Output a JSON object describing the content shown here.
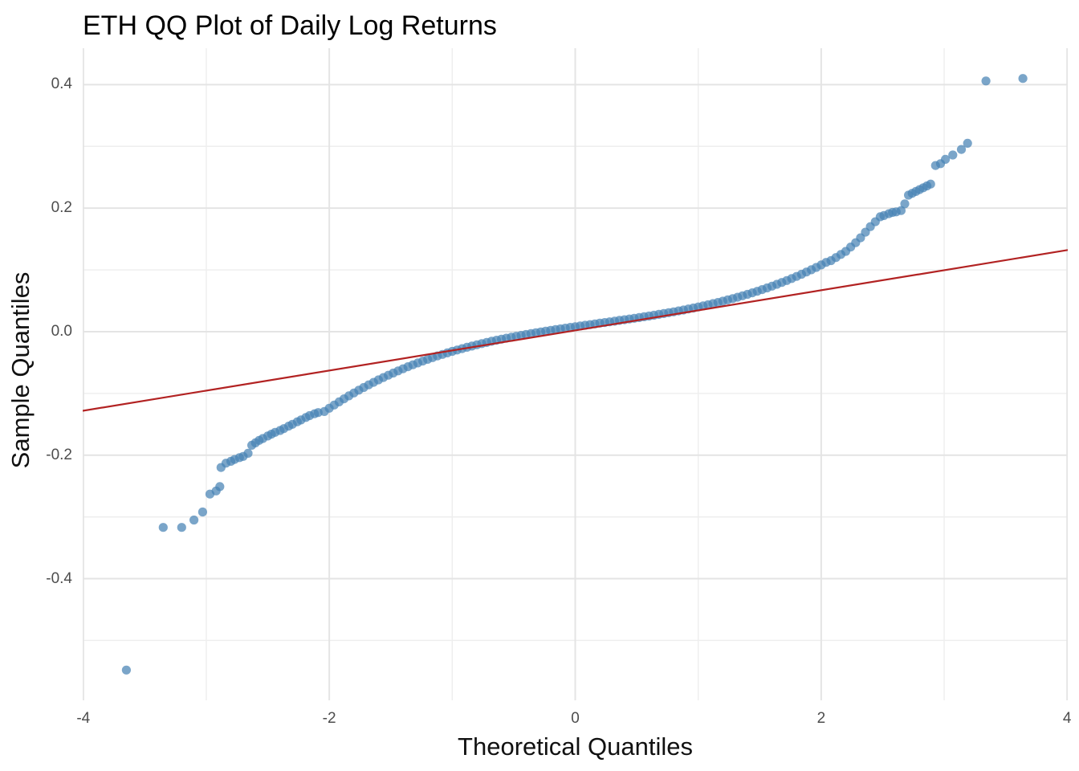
{
  "chart_data": {
    "type": "scatter",
    "title": "ETH QQ Plot of Daily Log Returns",
    "xlabel": "Theoretical Quantiles",
    "ylabel": "Sample Quantiles",
    "xlim": [
      -4.005,
      4.005
    ],
    "ylim": [
      -0.597,
      0.459
    ],
    "x_ticks": [
      -4,
      -2,
      0,
      2,
      4
    ],
    "x_tick_labels": [
      "-4",
      "-2",
      "0",
      "2",
      "4"
    ],
    "y_ticks": [
      0.4,
      0.2,
      0.0,
      -0.2,
      -0.4
    ],
    "y_tick_labels": [
      "0.4",
      "0.2",
      "0.0",
      "-0.2",
      "-0.4"
    ],
    "x_minor_gridlines": [
      -3,
      -1,
      1,
      3
    ],
    "y_minor_gridlines": [
      0.3,
      0.1,
      -0.1,
      -0.3,
      -0.5
    ],
    "grid": true,
    "legend": false,
    "colors": {
      "background": "#ffffff",
      "grid_major": "#e4e4e4",
      "grid_minor": "#eeeeee",
      "point_fill": "#4682B4",
      "reference_line": "#B22222",
      "tick_label": "#4d4d4d",
      "title": "#000000"
    },
    "point_opacity": 0.72,
    "point_radius": 5.6,
    "reference_line": {
      "intercept": 0.002,
      "slope": 0.0325
    },
    "points": [
      [
        -3.65,
        -0.548
      ],
      [
        -3.35,
        -0.317
      ],
      [
        -3.2,
        -0.317
      ],
      [
        -3.1,
        -0.305
      ],
      [
        -3.03,
        -0.292
      ],
      [
        -2.97,
        -0.263
      ],
      [
        -2.92,
        -0.258
      ],
      [
        -2.89,
        -0.251
      ],
      [
        -2.88,
        -0.22
      ],
      [
        -2.84,
        -0.213
      ],
      [
        -2.8,
        -0.21
      ],
      [
        -2.77,
        -0.207
      ],
      [
        -2.73,
        -0.204
      ],
      [
        -2.7,
        -0.202
      ],
      [
        -2.66,
        -0.197
      ],
      [
        -2.63,
        -0.184
      ],
      [
        -2.6,
        -0.18
      ],
      [
        -2.57,
        -0.176
      ],
      [
        -2.54,
        -0.173
      ],
      [
        -2.5,
        -0.169
      ],
      [
        -2.47,
        -0.166
      ],
      [
        -2.44,
        -0.163
      ],
      [
        -2.4,
        -0.16
      ],
      [
        -2.37,
        -0.157
      ],
      [
        -2.33,
        -0.153
      ],
      [
        -2.3,
        -0.15
      ],
      [
        -2.26,
        -0.146
      ],
      [
        -2.23,
        -0.143
      ],
      [
        -2.19,
        -0.139
      ],
      [
        -2.16,
        -0.136
      ],
      [
        -2.12,
        -0.133
      ],
      [
        -2.09,
        -0.131
      ],
      [
        -2.04,
        -0.1293
      ],
      [
        -2,
        -0.124
      ],
      [
        -1.96,
        -0.1188
      ],
      [
        -1.92,
        -0.1137
      ],
      [
        -1.88,
        -0.1088
      ],
      [
        -1.84,
        -0.104
      ],
      [
        -1.8,
        -0.0993
      ],
      [
        -1.76,
        -0.0948
      ],
      [
        -1.72,
        -0.0905
      ],
      [
        -1.68,
        -0.0862
      ],
      [
        -1.64,
        -0.0821
      ],
      [
        -1.6,
        -0.0781
      ],
      [
        -1.56,
        -0.0743
      ],
      [
        -1.52,
        -0.0706
      ],
      [
        -1.48,
        -0.067
      ],
      [
        -1.44,
        -0.0635
      ],
      [
        -1.4,
        -0.0601
      ],
      [
        -1.36,
        -0.0568
      ],
      [
        -1.32,
        -0.0537
      ],
      [
        -1.28,
        -0.0506
      ],
      [
        -1.24,
        -0.0477
      ],
      [
        -1.2,
        -0.0448
      ],
      [
        -1.16,
        -0.0421
      ],
      [
        -1.12,
        -0.0394
      ],
      [
        -1.08,
        -0.0369
      ],
      [
        -1.04,
        -0.0344
      ],
      [
        -1,
        -0.032
      ],
      [
        -0.96,
        -0.0297
      ],
      [
        -0.92,
        -0.0275
      ],
      [
        -0.88,
        -0.0253
      ],
      [
        -0.84,
        -0.0233
      ],
      [
        -0.8,
        -0.0213
      ],
      [
        -0.76,
        -0.0193
      ],
      [
        -0.72,
        -0.0175
      ],
      [
        -0.68,
        -0.0156
      ],
      [
        -0.64,
        -0.0139
      ],
      [
        -0.6,
        -0.0122
      ],
      [
        -0.56,
        -0.0106
      ],
      [
        -0.52,
        -0.009
      ],
      [
        -0.48,
        -0.0075
      ],
      [
        -0.44,
        -0.006
      ],
      [
        -0.4,
        -0.0046
      ],
      [
        -0.36,
        -0.0032
      ],
      [
        -0.32,
        -0.0018
      ],
      [
        -0.28,
        -0.0005
      ],
      [
        -0.24,
        0.0008
      ],
      [
        -0.2,
        0.0022
      ],
      [
        -0.16,
        0.0033
      ],
      [
        -0.12,
        0.0045
      ],
      [
        -0.08,
        0.0057
      ],
      [
        -0.04,
        0.0069
      ],
      [
        0,
        0.008
      ],
      [
        0.04,
        0.0091
      ],
      [
        0.08,
        0.0103
      ],
      [
        0.12,
        0.0114
      ],
      [
        0.16,
        0.0125
      ],
      [
        0.2,
        0.0138
      ],
      [
        0.24,
        0.0147
      ],
      [
        0.28,
        0.0159
      ],
      [
        0.32,
        0.017
      ],
      [
        0.36,
        0.0182
      ],
      [
        0.4,
        0.0193
      ],
      [
        0.44,
        0.0205
      ],
      [
        0.48,
        0.0216
      ],
      [
        0.52,
        0.0228
      ],
      [
        0.56,
        0.0241
      ],
      [
        0.6,
        0.0253
      ],
      [
        0.64,
        0.0266
      ],
      [
        0.68,
        0.028
      ],
      [
        0.72,
        0.0293
      ],
      [
        0.76,
        0.0307
      ],
      [
        0.8,
        0.0321
      ],
      [
        0.84,
        0.0336
      ],
      [
        0.88,
        0.0351
      ],
      [
        0.92,
        0.0367
      ],
      [
        0.96,
        0.0383
      ],
      [
        1,
        0.04
      ],
      [
        1.04,
        0.0417
      ],
      [
        1.08,
        0.0435
      ],
      [
        1.12,
        0.0454
      ],
      [
        1.16,
        0.0473
      ],
      [
        1.2,
        0.0493
      ],
      [
        1.24,
        0.0514
      ],
      [
        1.28,
        0.0535
      ],
      [
        1.32,
        0.0557
      ],
      [
        1.36,
        0.058
      ],
      [
        1.4,
        0.0604
      ],
      [
        1.44,
        0.0629
      ],
      [
        1.48,
        0.0654
      ],
      [
        1.52,
        0.0681
      ],
      [
        1.56,
        0.0708
      ],
      [
        1.6,
        0.0737
      ],
      [
        1.64,
        0.0766
      ],
      [
        1.68,
        0.0796
      ],
      [
        1.72,
        0.0828
      ],
      [
        1.76,
        0.086
      ],
      [
        1.8,
        0.0894
      ],
      [
        1.84,
        0.0929
      ],
      [
        1.88,
        0.0965
      ],
      [
        1.92,
        0.1002
      ],
      [
        1.96,
        0.104
      ],
      [
        2,
        0.108
      ],
      [
        2.04,
        0.1121
      ],
      [
        2.08,
        0.115
      ],
      [
        2.12,
        0.12
      ],
      [
        2.16,
        0.125
      ],
      [
        2.2,
        0.13
      ],
      [
        2.24,
        0.137
      ],
      [
        2.28,
        0.144
      ],
      [
        2.32,
        0.152
      ],
      [
        2.36,
        0.161
      ],
      [
        2.4,
        0.17
      ],
      [
        2.44,
        0.178
      ],
      [
        2.48,
        0.186
      ],
      [
        2.51,
        0.188
      ],
      [
        2.55,
        0.191
      ],
      [
        2.58,
        0.193
      ],
      [
        2.61,
        0.194
      ],
      [
        2.65,
        0.196
      ],
      [
        2.68,
        0.207
      ],
      [
        2.71,
        0.221
      ],
      [
        2.74,
        0.224
      ],
      [
        2.77,
        0.227
      ],
      [
        2.8,
        0.23
      ],
      [
        2.83,
        0.233
      ],
      [
        2.86,
        0.236
      ],
      [
        2.89,
        0.239
      ],
      [
        2.93,
        0.269
      ],
      [
        2.97,
        0.272
      ],
      [
        3.01,
        0.279
      ],
      [
        3.07,
        0.286
      ],
      [
        3.14,
        0.295
      ],
      [
        3.19,
        0.305
      ],
      [
        3.34,
        0.406
      ],
      [
        3.64,
        0.41
      ]
    ]
  }
}
